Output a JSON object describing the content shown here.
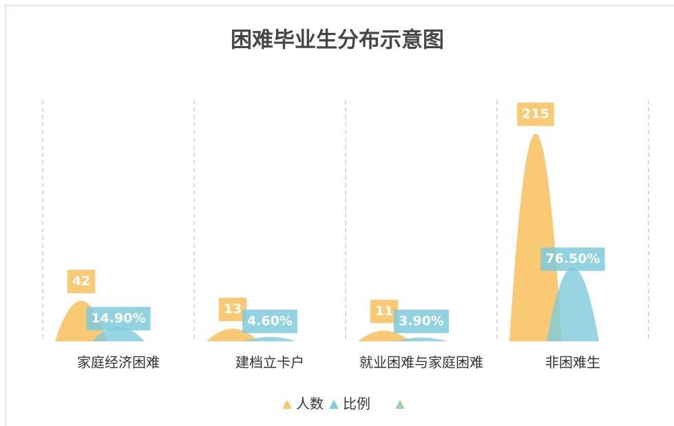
{
  "chart_data": {
    "type": "pictorial_bar",
    "title": "困难毕业生分布示意图",
    "categories": [
      "家庭经济困难",
      "建档立卡户",
      "就业困难与家庭困难",
      "非困难生"
    ],
    "series": [
      {
        "name": "人数",
        "color": "#f9c76c",
        "values": [
          42,
          13,
          11,
          215
        ]
      },
      {
        "name": "比例",
        "color": "#7ecbdb",
        "values": [
          14.9,
          4.6,
          3.9,
          76.5
        ],
        "value_labels": [
          "14.90%",
          "4.60%",
          "3.90%",
          "76.50%"
        ]
      }
    ],
    "ylim": [
      0,
      250
    ],
    "legend": "bottom",
    "grid": true
  }
}
